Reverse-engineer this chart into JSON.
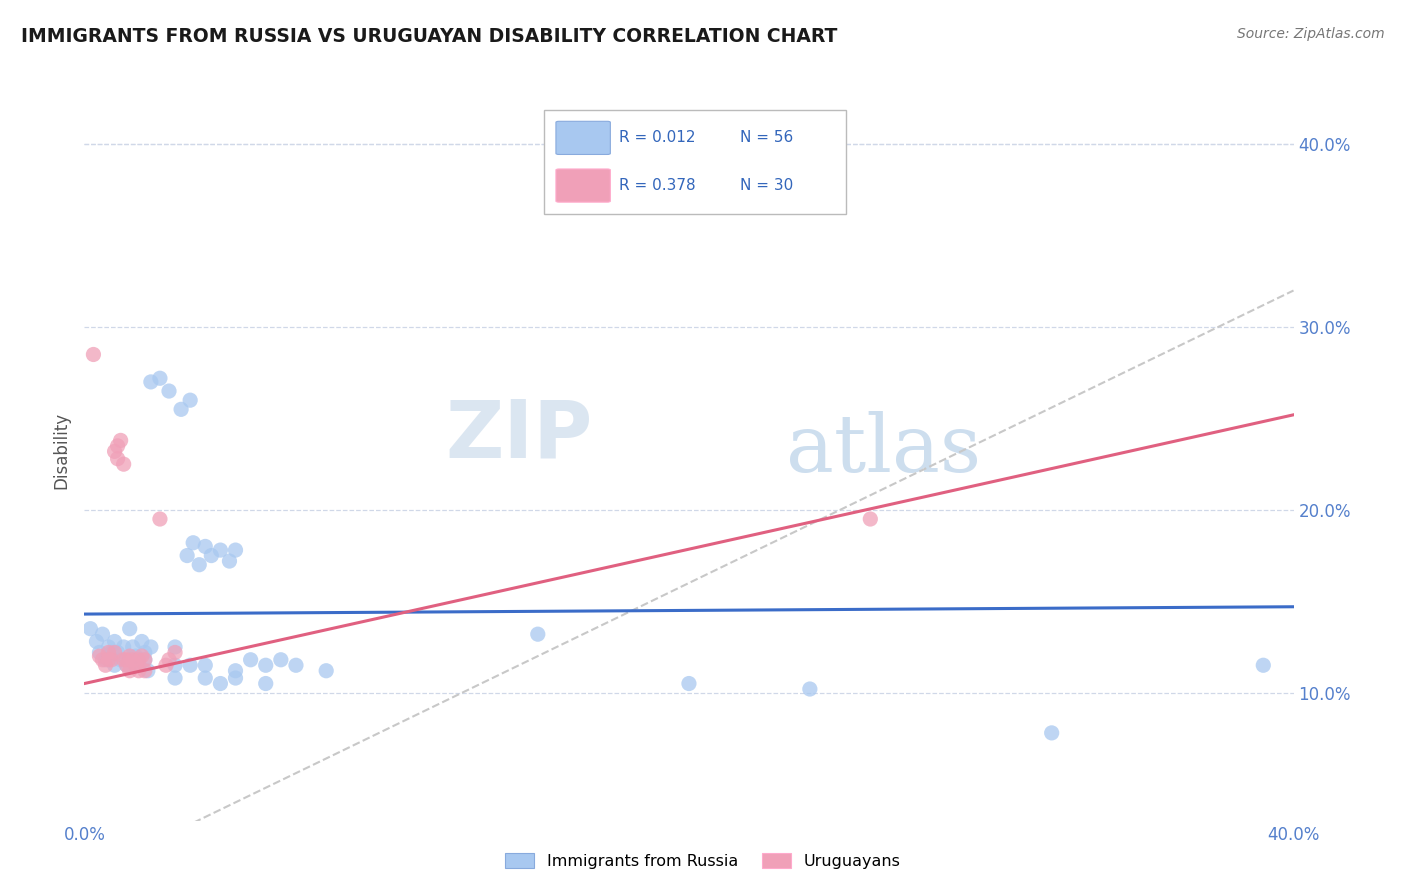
{
  "title": "IMMIGRANTS FROM RUSSIA VS URUGUAYAN DISABILITY CORRELATION CHART",
  "source": "Source: ZipAtlas.com",
  "ylabel": "Disability",
  "xmin": 0.0,
  "xmax": 0.4,
  "ymin": 0.03,
  "ymax": 0.435,
  "yticks": [
    0.1,
    0.2,
    0.3,
    0.4
  ],
  "ytick_labels": [
    "10.0%",
    "20.0%",
    "30.0%",
    "40.0%"
  ],
  "xtick_labels": [
    "0.0%",
    "40.0%"
  ],
  "legend_r1": "R = 0.012",
  "legend_n1": "N = 56",
  "legend_r2": "R = 0.378",
  "legend_n2": "N = 30",
  "color_blue": "#A8C8F0",
  "color_pink": "#F0A0B8",
  "color_blue_line": "#3B6CC8",
  "color_pink_line": "#E06080",
  "color_gray_dash": "#C8C8C8",
  "watermark_zip": "ZIP",
  "watermark_atlas": "atlas",
  "blue_points": [
    [
      0.002,
      0.135
    ],
    [
      0.004,
      0.128
    ],
    [
      0.005,
      0.122
    ],
    [
      0.006,
      0.132
    ],
    [
      0.007,
      0.118
    ],
    [
      0.008,
      0.125
    ],
    [
      0.009,
      0.122
    ],
    [
      0.01,
      0.115
    ],
    [
      0.01,
      0.128
    ],
    [
      0.011,
      0.122
    ],
    [
      0.012,
      0.118
    ],
    [
      0.013,
      0.125
    ],
    [
      0.014,
      0.115
    ],
    [
      0.015,
      0.135
    ],
    [
      0.015,
      0.118
    ],
    [
      0.016,
      0.125
    ],
    [
      0.017,
      0.12
    ],
    [
      0.018,
      0.115
    ],
    [
      0.019,
      0.128
    ],
    [
      0.02,
      0.122
    ],
    [
      0.02,
      0.118
    ],
    [
      0.021,
      0.112
    ],
    [
      0.022,
      0.125
    ],
    [
      0.022,
      0.27
    ],
    [
      0.025,
      0.272
    ],
    [
      0.028,
      0.265
    ],
    [
      0.03,
      0.115
    ],
    [
      0.03,
      0.125
    ],
    [
      0.032,
      0.255
    ],
    [
      0.035,
      0.26
    ],
    [
      0.034,
      0.175
    ],
    [
      0.036,
      0.182
    ],
    [
      0.038,
      0.17
    ],
    [
      0.04,
      0.18
    ],
    [
      0.042,
      0.175
    ],
    [
      0.045,
      0.178
    ],
    [
      0.048,
      0.172
    ],
    [
      0.05,
      0.178
    ],
    [
      0.035,
      0.115
    ],
    [
      0.04,
      0.115
    ],
    [
      0.05,
      0.112
    ],
    [
      0.055,
      0.118
    ],
    [
      0.06,
      0.115
    ],
    [
      0.065,
      0.118
    ],
    [
      0.07,
      0.115
    ],
    [
      0.08,
      0.112
    ],
    [
      0.03,
      0.108
    ],
    [
      0.04,
      0.108
    ],
    [
      0.045,
      0.105
    ],
    [
      0.05,
      0.108
    ],
    [
      0.06,
      0.105
    ],
    [
      0.15,
      0.132
    ],
    [
      0.2,
      0.105
    ],
    [
      0.24,
      0.102
    ],
    [
      0.32,
      0.078
    ],
    [
      0.39,
      0.115
    ]
  ],
  "pink_points": [
    [
      0.003,
      0.285
    ],
    [
      0.005,
      0.12
    ],
    [
      0.006,
      0.118
    ],
    [
      0.007,
      0.115
    ],
    [
      0.008,
      0.122
    ],
    [
      0.008,
      0.118
    ],
    [
      0.009,
      0.118
    ],
    [
      0.01,
      0.122
    ],
    [
      0.01,
      0.232
    ],
    [
      0.011,
      0.235
    ],
    [
      0.011,
      0.228
    ],
    [
      0.012,
      0.238
    ],
    [
      0.013,
      0.225
    ],
    [
      0.013,
      0.118
    ],
    [
      0.014,
      0.118
    ],
    [
      0.014,
      0.115
    ],
    [
      0.015,
      0.112
    ],
    [
      0.015,
      0.12
    ],
    [
      0.016,
      0.118
    ],
    [
      0.017,
      0.115
    ],
    [
      0.018,
      0.112
    ],
    [
      0.018,
      0.118
    ],
    [
      0.019,
      0.12
    ],
    [
      0.02,
      0.112
    ],
    [
      0.02,
      0.118
    ],
    [
      0.025,
      0.195
    ],
    [
      0.26,
      0.195
    ],
    [
      0.027,
      0.115
    ],
    [
      0.028,
      0.118
    ],
    [
      0.03,
      0.122
    ]
  ],
  "blue_line_x": [
    0.0,
    0.4
  ],
  "blue_line_y": [
    0.143,
    0.147
  ],
  "pink_line_x": [
    0.0,
    0.4
  ],
  "pink_line_y": [
    0.105,
    0.252
  ],
  "gray_line_x": [
    0.0,
    0.4
  ],
  "gray_line_y": [
    0.0,
    0.32
  ]
}
